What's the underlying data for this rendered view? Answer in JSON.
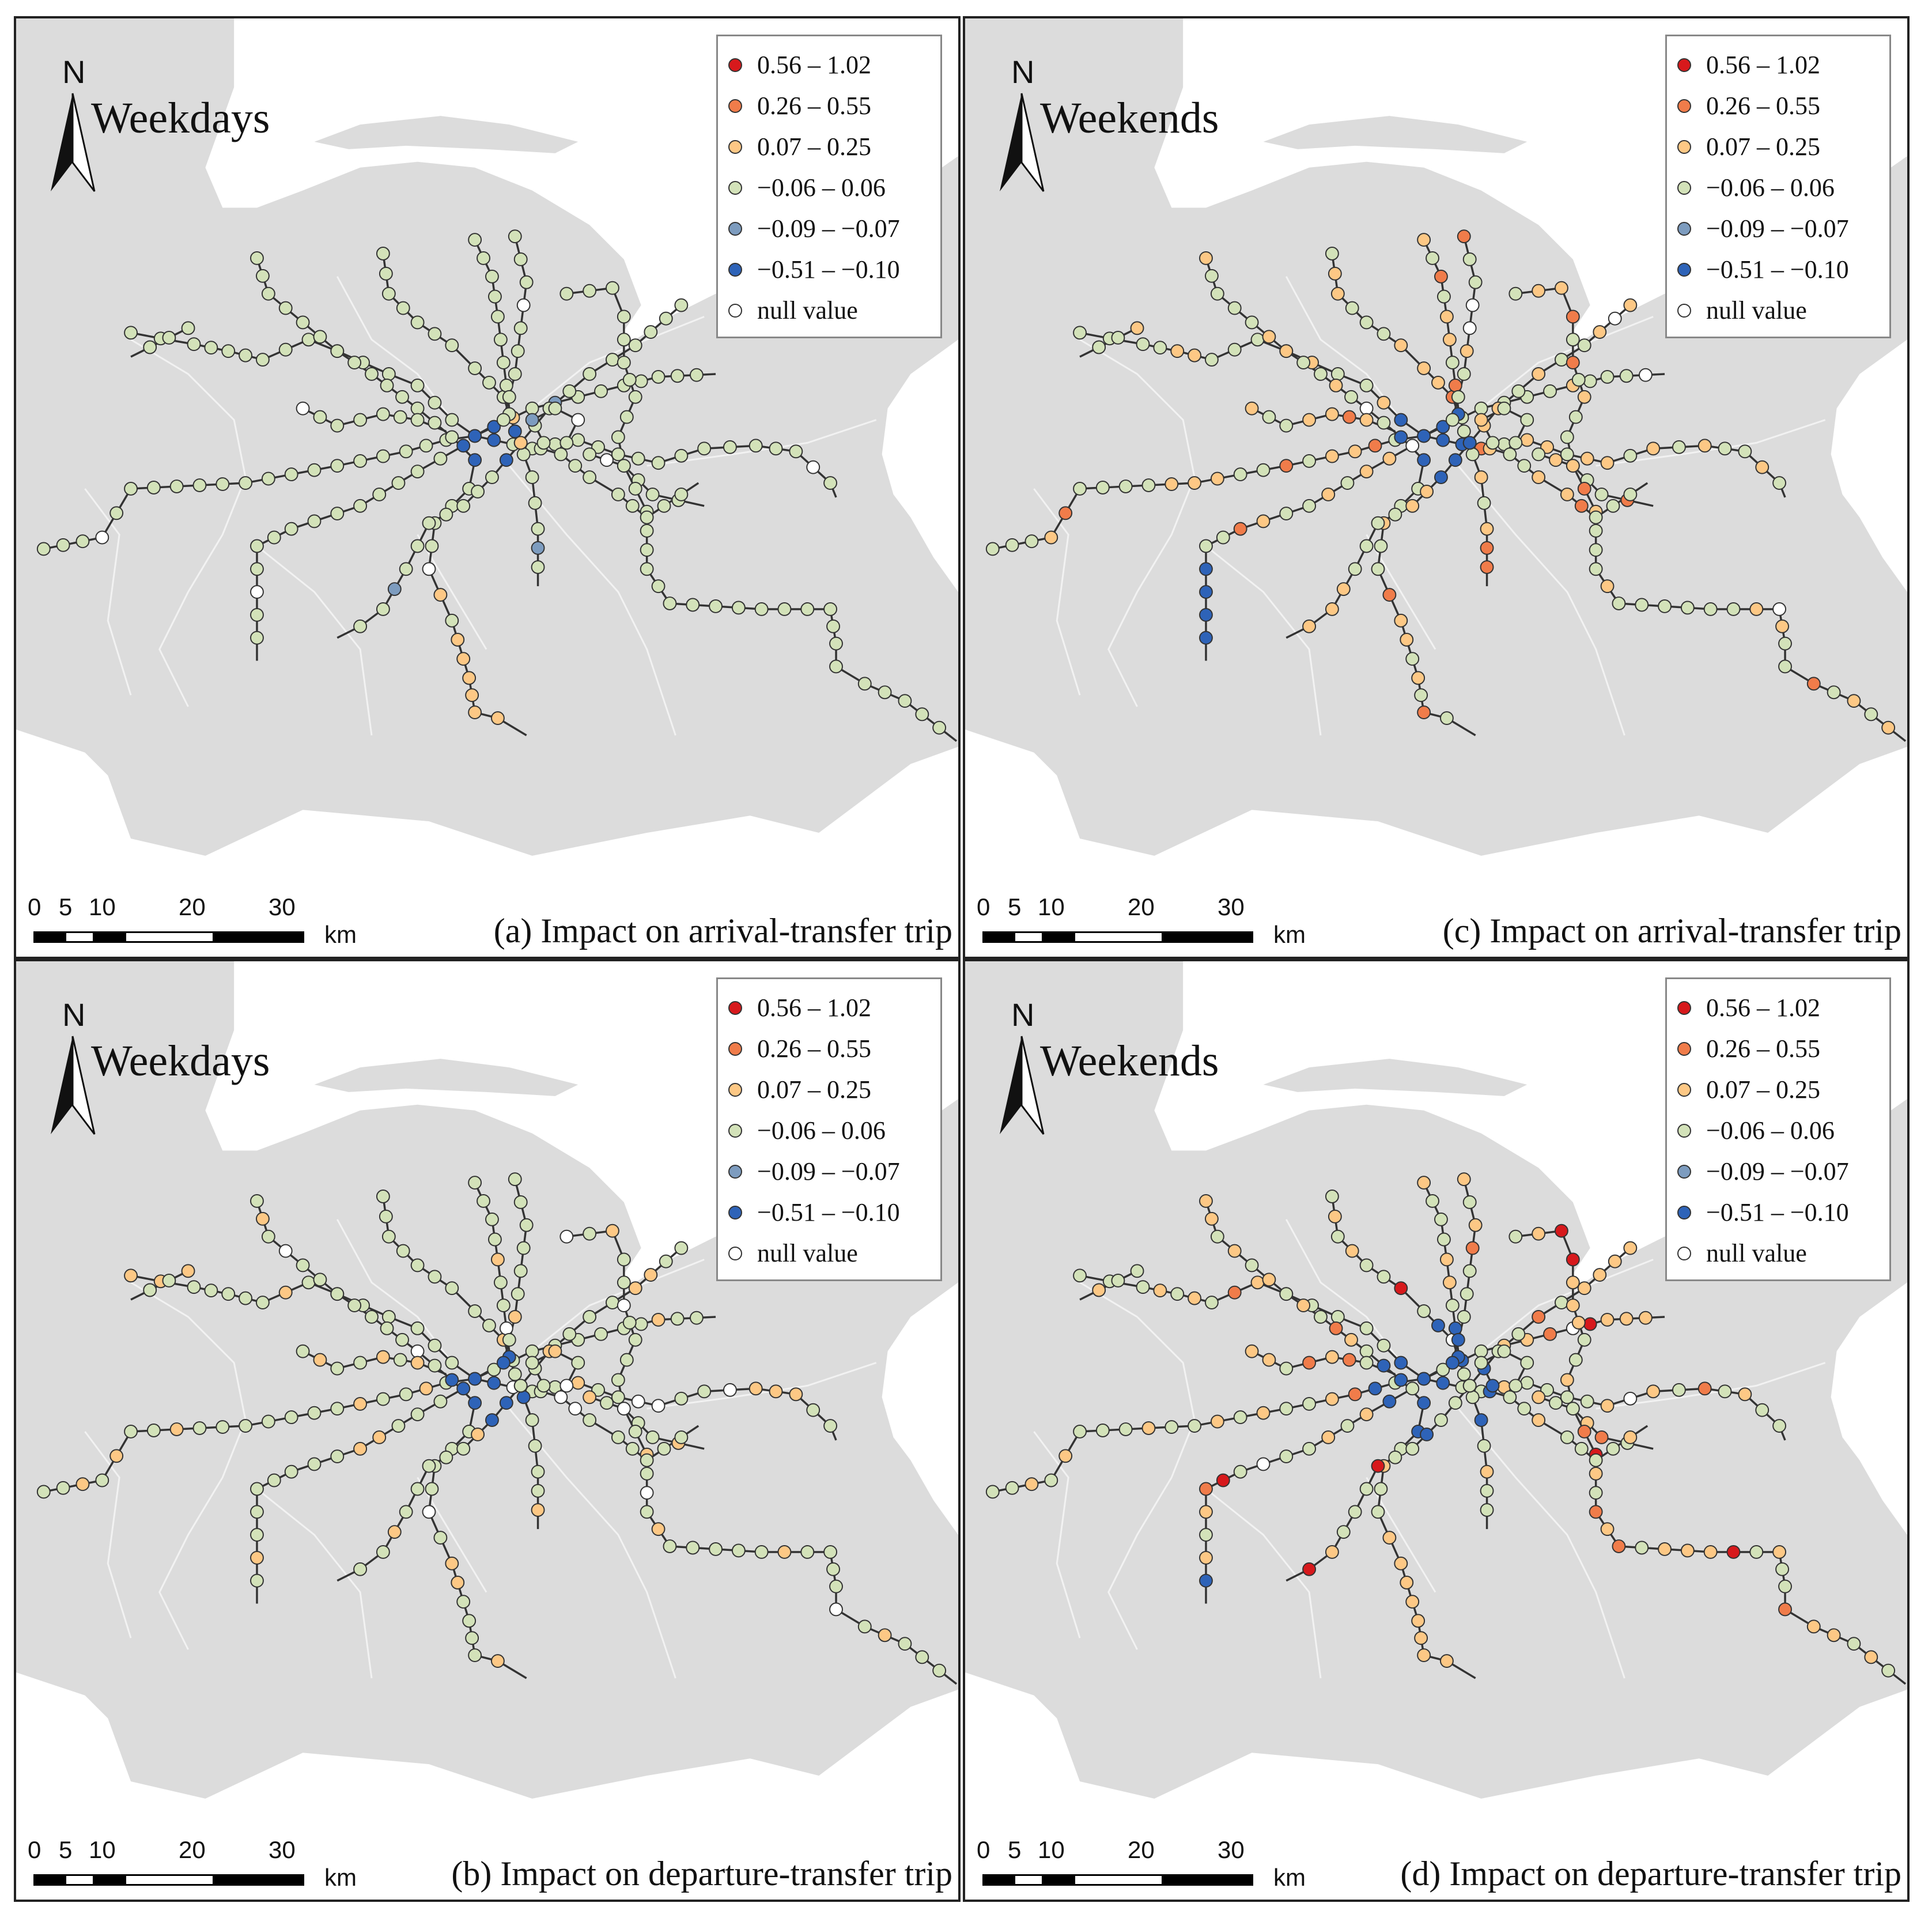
{
  "north_label": "N",
  "scale": {
    "ticks": [
      "0",
      "5",
      "10",
      "20",
      "30"
    ],
    "unit": "km"
  },
  "legend": [
    {
      "label": "0.56 – 1.02",
      "color": "#d7191c"
    },
    {
      "label": "0.26 – 0.55",
      "color": "#f07c4a"
    },
    {
      "label": "0.07 – 0.25",
      "color": "#fdc885"
    },
    {
      "label": "−0.06 – 0.06",
      "color": "#d3e2b9"
    },
    {
      "label": "−0.09 – −0.07",
      "color": "#7d9cbf"
    },
    {
      "label": "−0.51 – −0.10",
      "color": "#2e63b8"
    },
    {
      "label": "null value",
      "color": "#ffffff"
    }
  ],
  "colors": {
    "land": "#dcdcdc",
    "water": "#ffffff",
    "boundary": "#f2f2f2",
    "rail": "#333333"
  },
  "panels": [
    {
      "id": "a",
      "period": "Weekdays",
      "caption": "(a) Impact on arrival-transfer trip"
    },
    {
      "id": "c",
      "period": "Weekends",
      "caption": "(c) Impact on arrival-transfer trip"
    },
    {
      "id": "b",
      "period": "Weekdays",
      "caption": "(b) Impact on departure-transfer trip"
    },
    {
      "id": "d",
      "period": "Weekends",
      "caption": "(d) Impact on departure-transfer trip"
    }
  ]
}
